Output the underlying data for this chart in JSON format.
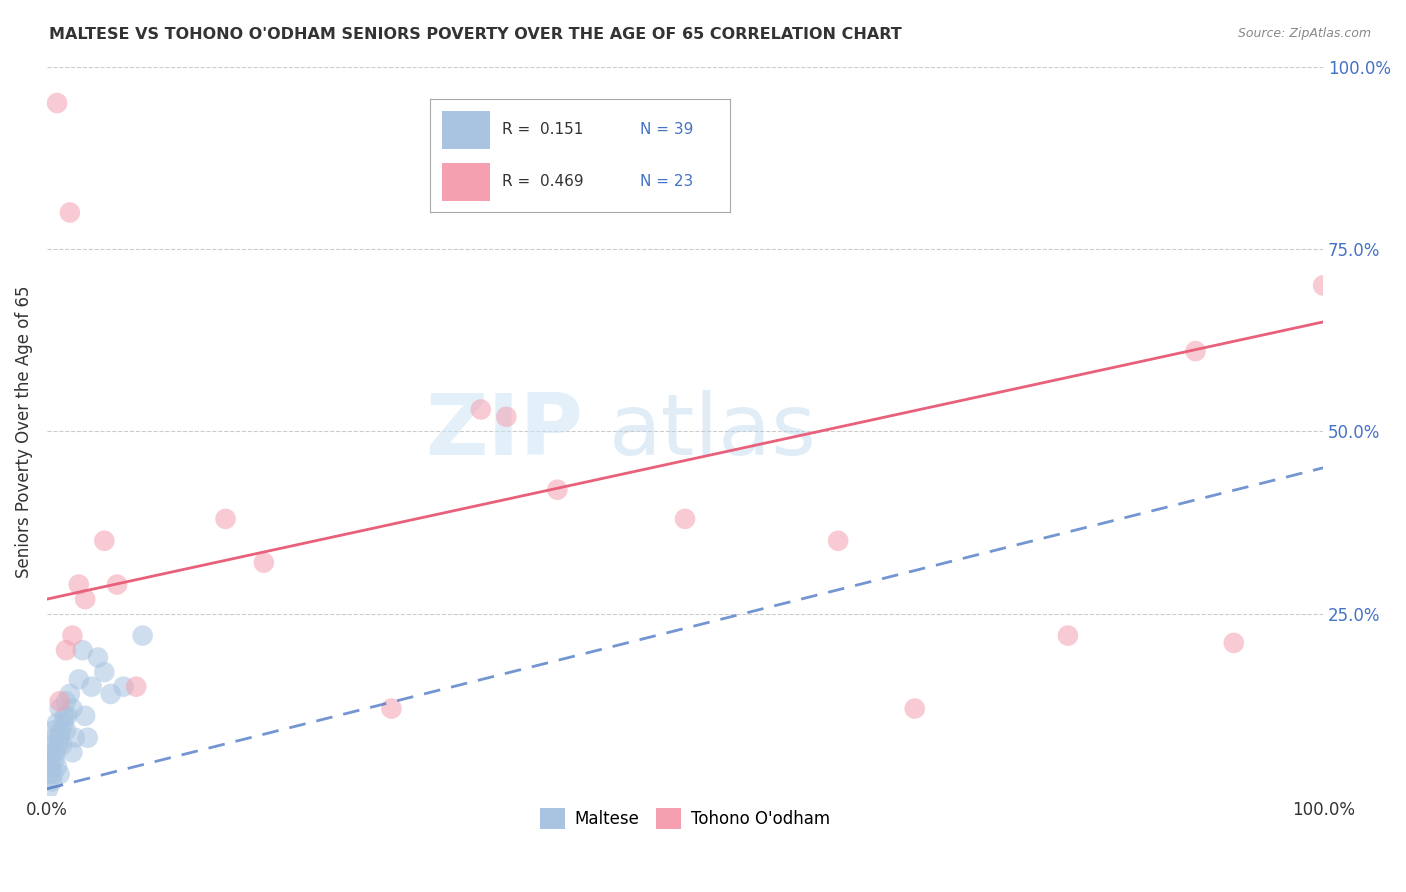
{
  "title": "MALTESE VS TOHONO O'ODHAM SENIORS POVERTY OVER THE AGE OF 65 CORRELATION CHART",
  "source": "Source: ZipAtlas.com",
  "ylabel": "Seniors Poverty Over the Age of 65",
  "xlim": [
    0,
    100
  ],
  "ylim": [
    0,
    100
  ],
  "maltese_color": "#a8c4e0",
  "tohono_color": "#f4a0b0",
  "maltese_line_color": "#4472c4",
  "tohono_line_color": "#e8607a",
  "background_color": "#ffffff",
  "legend_r1": "R =  0.151",
  "legend_n1": "N = 39",
  "legend_r2": "R =  0.469",
  "legend_n2": "N = 23",
  "tohono_line_x0": 0,
  "tohono_line_y0": 27,
  "tohono_line_x1": 100,
  "tohono_line_y1": 65,
  "maltese_line_x0": 0,
  "maltese_line_y0": 1,
  "maltese_line_x1": 100,
  "maltese_line_y1": 45,
  "maltese_x": [
    0.1,
    0.2,
    0.2,
    0.3,
    0.4,
    0.4,
    0.5,
    0.5,
    0.5,
    0.6,
    0.6,
    0.7,
    0.8,
    0.8,
    0.9,
    1.0,
    1.0,
    1.0,
    1.1,
    1.2,
    1.3,
    1.4,
    1.5,
    1.5,
    1.6,
    1.8,
    2.0,
    2.0,
    2.2,
    2.5,
    2.8,
    3.0,
    3.2,
    3.5,
    4.0,
    4.5,
    5.0,
    6.0,
    7.5
  ],
  "maltese_y": [
    1,
    3,
    5,
    4,
    2,
    7,
    3,
    6,
    9,
    5,
    8,
    6,
    4,
    10,
    7,
    3,
    8,
    12,
    9,
    7,
    10,
    11,
    9,
    13,
    11,
    14,
    6,
    12,
    8,
    16,
    20,
    11,
    8,
    15,
    19,
    17,
    14,
    15,
    22
  ],
  "tohono_x": [
    1.0,
    1.5,
    2.0,
    2.5,
    3.0,
    4.5,
    5.5,
    7.0,
    14.0,
    17.0,
    27.0,
    34.0,
    36.0,
    40.0,
    50.0,
    62.0,
    68.0,
    80.0,
    90.0,
    93.0,
    100.0,
    0.8,
    1.8
  ],
  "tohono_y": [
    13,
    20,
    22,
    29,
    27,
    35,
    29,
    15,
    38,
    32,
    12,
    53,
    52,
    42,
    38,
    35,
    12,
    22,
    61,
    21,
    70,
    95,
    80
  ]
}
